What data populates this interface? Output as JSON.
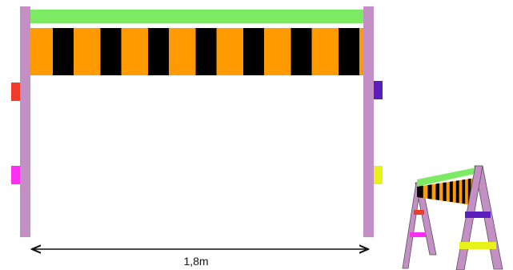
{
  "colors": {
    "post": "#c48fc4",
    "top_bar": "#7dea63",
    "stripe_orange": "#ff9a00",
    "stripe_black": "#000000",
    "tab_red": "#f03a2a",
    "tab_magenta": "#ff2ff2",
    "tab_purple": "#5a1ebf",
    "tab_yellow": "#e8f21a",
    "outline": "#555555"
  },
  "dimension": {
    "label": "1,8m"
  },
  "front_view": {
    "stripe_count": 7
  },
  "perspective_view": {
    "stripe_count": 8
  }
}
